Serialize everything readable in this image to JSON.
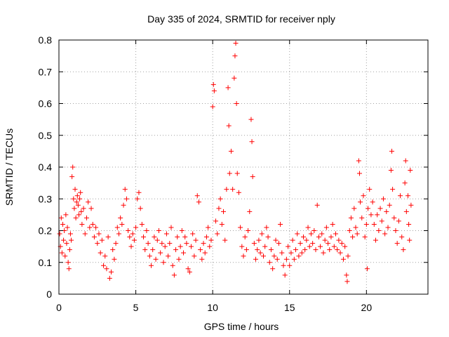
{
  "chart_data": {
    "type": "scatter",
    "title": "Day 335 of 2024, SRMTID for receiver nply",
    "xlabel": "GPS time / hours",
    "ylabel": "SRMTID / TECUs",
    "xlim": [
      0,
      24
    ],
    "ylim": [
      0,
      0.8
    ],
    "xticks": [
      0,
      5,
      10,
      15,
      20
    ],
    "yticks": [
      0,
      0.1,
      0.2,
      0.3,
      0.4,
      0.5,
      0.6,
      0.7,
      0.8
    ],
    "xtick_labels": [
      "0",
      "5",
      "10",
      "15",
      "20"
    ],
    "ytick_labels": [
      "0",
      "0.1",
      "0.2",
      "0.3",
      "0.4",
      "0.5",
      "0.6",
      "0.7",
      "0.8"
    ],
    "grid": true,
    "marker": "plus",
    "series_color": "#ff0000",
    "series": [
      {
        "name": "SRMTID",
        "points": [
          [
            0.05,
            0.19
          ],
          [
            0.1,
            0.15
          ],
          [
            0.15,
            0.24
          ],
          [
            0.2,
            0.13
          ],
          [
            0.25,
            0.22
          ],
          [
            0.3,
            0.17
          ],
          [
            0.35,
            0.2
          ],
          [
            0.4,
            0.12
          ],
          [
            0.45,
            0.25
          ],
          [
            0.5,
            0.16
          ],
          [
            0.55,
            0.21
          ],
          [
            0.6,
            0.1
          ],
          [
            0.65,
            0.08
          ],
          [
            0.7,
            0.14
          ],
          [
            0.75,
            0.19
          ],
          [
            0.8,
            0.17
          ],
          [
            0.85,
            0.37
          ],
          [
            0.9,
            0.4
          ],
          [
            0.95,
            0.3
          ],
          [
            1.0,
            0.27
          ],
          [
            1.05,
            0.33
          ],
          [
            1.1,
            0.24
          ],
          [
            1.15,
            0.29
          ],
          [
            1.2,
            0.31
          ],
          [
            1.25,
            0.28
          ],
          [
            1.3,
            0.25
          ],
          [
            1.35,
            0.3
          ],
          [
            1.4,
            0.32
          ],
          [
            1.45,
            0.26
          ],
          [
            1.5,
            0.22
          ],
          [
            1.6,
            0.27
          ],
          [
            1.7,
            0.19
          ],
          [
            1.8,
            0.24
          ],
          [
            1.9,
            0.29
          ],
          [
            2.0,
            0.21
          ],
          [
            2.1,
            0.27
          ],
          [
            2.2,
            0.22
          ],
          [
            2.3,
            0.18
          ],
          [
            2.4,
            0.21
          ],
          [
            2.5,
            0.16
          ],
          [
            2.6,
            0.19
          ],
          [
            2.7,
            0.13
          ],
          [
            2.8,
            0.17
          ],
          [
            2.9,
            0.09
          ],
          [
            3.0,
            0.12
          ],
          [
            3.1,
            0.08
          ],
          [
            3.2,
            0.18
          ],
          [
            3.3,
            0.05
          ],
          [
            3.4,
            0.07
          ],
          [
            3.5,
            0.14
          ],
          [
            3.6,
            0.11
          ],
          [
            3.7,
            0.16
          ],
          [
            3.8,
            0.21
          ],
          [
            3.9,
            0.19
          ],
          [
            4.0,
            0.24
          ],
          [
            4.1,
            0.22
          ],
          [
            4.2,
            0.28
          ],
          [
            4.3,
            0.33
          ],
          [
            4.4,
            0.3
          ],
          [
            4.5,
            0.2
          ],
          [
            4.6,
            0.18
          ],
          [
            4.7,
            0.15
          ],
          [
            4.8,
            0.19
          ],
          [
            4.9,
            0.17
          ],
          [
            5.0,
            0.21
          ],
          [
            5.1,
            0.3
          ],
          [
            5.2,
            0.32
          ],
          [
            5.3,
            0.27
          ],
          [
            5.4,
            0.22
          ],
          [
            5.5,
            0.18
          ],
          [
            5.6,
            0.14
          ],
          [
            5.7,
            0.2
          ],
          [
            5.8,
            0.16
          ],
          [
            5.9,
            0.12
          ],
          [
            6.0,
            0.09
          ],
          [
            6.1,
            0.14
          ],
          [
            6.2,
            0.18
          ],
          [
            6.3,
            0.11
          ],
          [
            6.4,
            0.17
          ],
          [
            6.5,
            0.2
          ],
          [
            6.6,
            0.13
          ],
          [
            6.7,
            0.16
          ],
          [
            6.8,
            0.1
          ],
          [
            6.9,
            0.15
          ],
          [
            7.0,
            0.19
          ],
          [
            7.1,
            0.12
          ],
          [
            7.2,
            0.16
          ],
          [
            7.3,
            0.21
          ],
          [
            7.4,
            0.09
          ],
          [
            7.5,
            0.06
          ],
          [
            7.6,
            0.14
          ],
          [
            7.7,
            0.18
          ],
          [
            7.8,
            0.11
          ],
          [
            7.9,
            0.15
          ],
          [
            8.0,
            0.2
          ],
          [
            8.1,
            0.13
          ],
          [
            8.2,
            0.18
          ],
          [
            8.3,
            0.16
          ],
          [
            8.4,
            0.08
          ],
          [
            8.5,
            0.07
          ],
          [
            8.6,
            0.15
          ],
          [
            8.7,
            0.19
          ],
          [
            8.8,
            0.12
          ],
          [
            8.9,
            0.17
          ],
          [
            9.0,
            0.31
          ],
          [
            9.1,
            0.29
          ],
          [
            9.2,
            0.14
          ],
          [
            9.3,
            0.11
          ],
          [
            9.4,
            0.16
          ],
          [
            9.5,
            0.13
          ],
          [
            9.6,
            0.18
          ],
          [
            9.7,
            0.21
          ],
          [
            9.8,
            0.15
          ],
          [
            9.9,
            0.17
          ],
          [
            10.0,
            0.59
          ],
          [
            10.05,
            0.66
          ],
          [
            10.1,
            0.64
          ],
          [
            10.2,
            0.23
          ],
          [
            10.3,
            0.19
          ],
          [
            10.4,
            0.27
          ],
          [
            10.5,
            0.3
          ],
          [
            10.6,
            0.22
          ],
          [
            10.7,
            0.26
          ],
          [
            10.8,
            0.17
          ],
          [
            10.9,
            0.33
          ],
          [
            11.0,
            0.65
          ],
          [
            11.05,
            0.53
          ],
          [
            11.1,
            0.38
          ],
          [
            11.2,
            0.45
          ],
          [
            11.3,
            0.33
          ],
          [
            11.4,
            0.68
          ],
          [
            11.45,
            0.75
          ],
          [
            11.5,
            0.79
          ],
          [
            11.55,
            0.6
          ],
          [
            11.6,
            0.38
          ],
          [
            11.7,
            0.32
          ],
          [
            11.8,
            0.21
          ],
          [
            11.9,
            0.15
          ],
          [
            12.0,
            0.12
          ],
          [
            12.1,
            0.18
          ],
          [
            12.2,
            0.14
          ],
          [
            12.3,
            0.2
          ],
          [
            12.4,
            0.26
          ],
          [
            12.5,
            0.55
          ],
          [
            12.55,
            0.48
          ],
          [
            12.6,
            0.37
          ],
          [
            12.7,
            0.16
          ],
          [
            12.8,
            0.11
          ],
          [
            12.9,
            0.14
          ],
          [
            13.0,
            0.17
          ],
          [
            13.1,
            0.13
          ],
          [
            13.2,
            0.19
          ],
          [
            13.3,
            0.12
          ],
          [
            13.4,
            0.15
          ],
          [
            13.5,
            0.21
          ],
          [
            13.6,
            0.18
          ],
          [
            13.7,
            0.1
          ],
          [
            13.8,
            0.14
          ],
          [
            13.9,
            0.08
          ],
          [
            14.0,
            0.12
          ],
          [
            14.1,
            0.17
          ],
          [
            14.2,
            0.11
          ],
          [
            14.3,
            0.16
          ],
          [
            14.4,
            0.22
          ],
          [
            14.5,
            0.13
          ],
          [
            14.6,
            0.09
          ],
          [
            14.7,
            0.06
          ],
          [
            14.8,
            0.11
          ],
          [
            14.9,
            0.15
          ],
          [
            15.0,
            0.09
          ],
          [
            15.1,
            0.13
          ],
          [
            15.2,
            0.17
          ],
          [
            15.3,
            0.11
          ],
          [
            15.4,
            0.14
          ],
          [
            15.5,
            0.19
          ],
          [
            15.6,
            0.12
          ],
          [
            15.7,
            0.16
          ],
          [
            15.8,
            0.13
          ],
          [
            15.9,
            0.18
          ],
          [
            16.0,
            0.14
          ],
          [
            16.1,
            0.17
          ],
          [
            16.2,
            0.21
          ],
          [
            16.3,
            0.15
          ],
          [
            16.4,
            0.19
          ],
          [
            16.5,
            0.16
          ],
          [
            16.6,
            0.2
          ],
          [
            16.7,
            0.14
          ],
          [
            16.8,
            0.28
          ],
          [
            16.9,
            0.18
          ],
          [
            17.0,
            0.15
          ],
          [
            17.1,
            0.19
          ],
          [
            17.2,
            0.13
          ],
          [
            17.3,
            0.17
          ],
          [
            17.4,
            0.21
          ],
          [
            17.5,
            0.16
          ],
          [
            17.6,
            0.14
          ],
          [
            17.7,
            0.18
          ],
          [
            17.8,
            0.22
          ],
          [
            17.9,
            0.15
          ],
          [
            18.0,
            0.19
          ],
          [
            18.1,
            0.14
          ],
          [
            18.2,
            0.17
          ],
          [
            18.3,
            0.13
          ],
          [
            18.4,
            0.16
          ],
          [
            18.5,
            0.11
          ],
          [
            18.6,
            0.15
          ],
          [
            18.7,
            0.06
          ],
          [
            18.75,
            0.04
          ],
          [
            18.8,
            0.12
          ],
          [
            18.9,
            0.2
          ],
          [
            19.0,
            0.24
          ],
          [
            19.1,
            0.18
          ],
          [
            19.2,
            0.27
          ],
          [
            19.3,
            0.21
          ],
          [
            19.4,
            0.19
          ],
          [
            19.5,
            0.42
          ],
          [
            19.55,
            0.38
          ],
          [
            19.6,
            0.29
          ],
          [
            19.7,
            0.24
          ],
          [
            19.8,
            0.31
          ],
          [
            19.9,
            0.18
          ],
          [
            20.0,
            0.22
          ],
          [
            20.05,
            0.08
          ],
          [
            20.1,
            0.27
          ],
          [
            20.2,
            0.33
          ],
          [
            20.3,
            0.25
          ],
          [
            20.4,
            0.29
          ],
          [
            20.5,
            0.22
          ],
          [
            20.6,
            0.17
          ],
          [
            20.7,
            0.25
          ],
          [
            20.8,
            0.2
          ],
          [
            20.9,
            0.27
          ],
          [
            21.0,
            0.23
          ],
          [
            21.1,
            0.3
          ],
          [
            21.2,
            0.19
          ],
          [
            21.3,
            0.26
          ],
          [
            21.4,
            0.21
          ],
          [
            21.5,
            0.28
          ],
          [
            21.6,
            0.39
          ],
          [
            21.65,
            0.45
          ],
          [
            21.7,
            0.33
          ],
          [
            21.8,
            0.24
          ],
          [
            21.9,
            0.2
          ],
          [
            22.0,
            0.16
          ],
          [
            22.1,
            0.23
          ],
          [
            22.2,
            0.31
          ],
          [
            22.3,
            0.18
          ],
          [
            22.4,
            0.14
          ],
          [
            22.5,
            0.35
          ],
          [
            22.55,
            0.42
          ],
          [
            22.6,
            0.26
          ],
          [
            22.7,
            0.31
          ],
          [
            22.75,
            0.22
          ],
          [
            22.8,
            0.17
          ],
          [
            22.85,
            0.39
          ],
          [
            22.9,
            0.28
          ]
        ]
      }
    ]
  }
}
